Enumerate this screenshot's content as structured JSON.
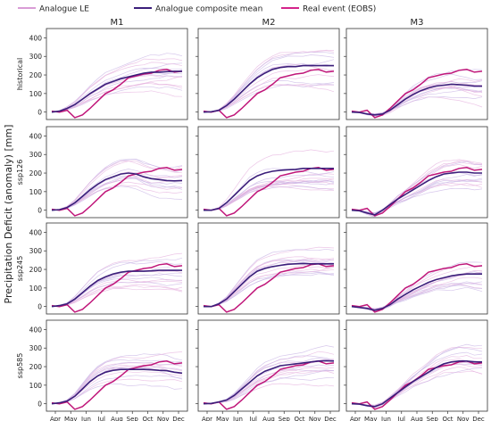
{
  "chart_data": {
    "type": "line",
    "figure": {
      "ylabel": "Precipitation Deficit (anomaly) [mm]",
      "columns": [
        "M1",
        "M2",
        "M3"
      ],
      "rows": [
        "historical",
        "ssp126",
        "ssp245",
        "ssp585"
      ],
      "x_ticks": [
        "Apr",
        "May",
        "Jun",
        "Jul",
        "Aug",
        "Sep",
        "Oct",
        "Nov",
        "Dec"
      ],
      "ylim": [
        -40,
        450
      ],
      "y_ticks": [
        0,
        100,
        200,
        300,
        400
      ],
      "legend": {
        "placement": "top",
        "entries": [
          {
            "label": "Analogue LE",
            "color": "#d99cd6"
          },
          {
            "label": "Analogue composite mean",
            "color": "#3b1e7a"
          },
          {
            "label": "Real event (EOBS)",
            "color": "#d4238a"
          }
        ]
      }
    },
    "real_event": {
      "name": "Real event (EOBS)",
      "color": "#c0177a",
      "months": [
        "Apr",
        "Apr-mid",
        "May",
        "May-mid",
        "Jun",
        "Jun-mid",
        "Jul",
        "Jul-mid",
        "Aug",
        "Aug-mid",
        "Sep",
        "Sep-mid",
        "Oct",
        "Oct-mid",
        "Nov",
        "Nov-mid",
        "Dec",
        "Dec-end"
      ],
      "values": [
        5,
        0,
        10,
        -30,
        -15,
        20,
        60,
        100,
        120,
        150,
        185,
        195,
        205,
        210,
        225,
        230,
        215,
        220
      ]
    },
    "composite_means": {
      "color": "#3b1e7a",
      "panels": [
        {
          "row": "historical",
          "col": "M1",
          "values": [
            0,
            5,
            20,
            40,
            70,
            100,
            125,
            150,
            165,
            180,
            190,
            200,
            210,
            215,
            215,
            218,
            220,
            220
          ]
        },
        {
          "row": "historical",
          "col": "M2",
          "values": [
            0,
            2,
            10,
            35,
            70,
            110,
            150,
            185,
            210,
            230,
            240,
            245,
            245,
            250,
            250,
            250,
            250,
            250
          ]
        },
        {
          "row": "historical",
          "col": "M3",
          "values": [
            0,
            -2,
            -10,
            -15,
            -10,
            10,
            40,
            70,
            95,
            115,
            130,
            140,
            145,
            150,
            148,
            145,
            140,
            140
          ]
        },
        {
          "row": "ssp126",
          "col": "M1",
          "values": [
            0,
            3,
            15,
            40,
            75,
            110,
            140,
            165,
            180,
            195,
            200,
            195,
            180,
            170,
            165,
            160,
            158,
            160
          ]
        },
        {
          "row": "ssp126",
          "col": "M2",
          "values": [
            0,
            0,
            10,
            40,
            80,
            120,
            160,
            185,
            200,
            210,
            215,
            218,
            220,
            225,
            225,
            225,
            225,
            225
          ]
        },
        {
          "row": "ssp126",
          "col": "M3",
          "values": [
            0,
            -3,
            -15,
            -25,
            0,
            30,
            60,
            85,
            110,
            135,
            160,
            180,
            195,
            200,
            205,
            205,
            200,
            200
          ]
        },
        {
          "row": "ssp245",
          "col": "M1",
          "values": [
            0,
            5,
            15,
            40,
            75,
            110,
            140,
            160,
            175,
            185,
            190,
            190,
            190,
            192,
            195,
            195,
            195,
            195
          ]
        },
        {
          "row": "ssp245",
          "col": "M2",
          "values": [
            0,
            0,
            15,
            40,
            80,
            120,
            160,
            190,
            205,
            215,
            222,
            228,
            230,
            232,
            230,
            230,
            230,
            230
          ]
        },
        {
          "row": "ssp245",
          "col": "M3",
          "values": [
            0,
            -5,
            -10,
            -20,
            -10,
            10,
            40,
            65,
            90,
            110,
            130,
            145,
            155,
            165,
            172,
            175,
            175,
            175
          ]
        },
        {
          "row": "ssp585",
          "col": "M1",
          "values": [
            0,
            5,
            15,
            40,
            80,
            120,
            150,
            170,
            180,
            185,
            185,
            185,
            185,
            183,
            180,
            178,
            170,
            165
          ]
        },
        {
          "row": "ssp585",
          "col": "M2",
          "values": [
            0,
            2,
            10,
            20,
            45,
            80,
            115,
            150,
            175,
            190,
            205,
            210,
            215,
            220,
            225,
            230,
            232,
            230
          ]
        },
        {
          "row": "ssp585",
          "col": "M3",
          "values": [
            0,
            -2,
            -10,
            -15,
            0,
            30,
            60,
            90,
            120,
            145,
            170,
            195,
            215,
            225,
            230,
            230,
            225,
            225
          ]
        }
      ]
    }
  }
}
